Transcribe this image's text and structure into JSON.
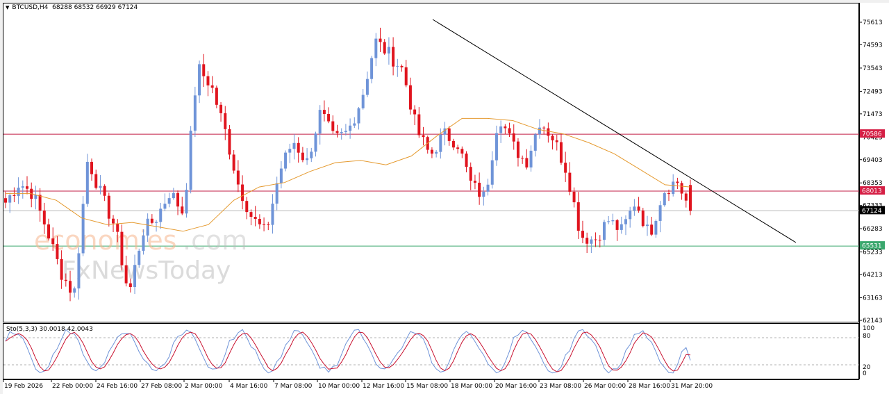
{
  "header": {
    "symbol_timeframe": "BTCUSD,H4",
    "ohlc": "68288 68532 66929 67124",
    "dropdown_icon": "triangle-down-icon"
  },
  "price_axis": {
    "ticks": [
      "75613",
      "74593",
      "73543",
      "72493",
      "71473",
      "70423",
      "69403",
      "68353",
      "67333",
      "66283",
      "65233",
      "64213",
      "63163",
      "62143"
    ],
    "tags": {
      "resistance_upper": "70586",
      "resistance_lower": "68013",
      "current_price": "67124",
      "support": "65531"
    }
  },
  "time_axis": {
    "labels": [
      "19 Feb 2026",
      "22 Feb 00:00",
      "24 Feb 16:00",
      "27 Feb 08:00",
      "2 Mar 00:00",
      "4 Mar 16:00",
      "7 Mar 08:00",
      "10 Mar 00:00",
      "12 Mar 16:00",
      "15 Mar 08:00",
      "18 Mar 00:00",
      "20 Mar 16:00",
      "23 Mar 08:00",
      "26 Mar 00:00",
      "28 Mar 16:00",
      "31 Mar 20:00"
    ]
  },
  "stochastic": {
    "label": "Sto(5,3,3) 30.0018 42.0043",
    "levels": [
      "100",
      "80",
      "20",
      "0"
    ]
  },
  "watermark": {
    "line1_a": "economies",
    "line1_b": ".com",
    "line2": "FxNewsToday"
  },
  "colors": {
    "bull": "#6f94d8",
    "bear": "#e0141e",
    "ma": "#e59a2f",
    "resistance": "#c21e44",
    "support": "#3aa76d",
    "current": "#000000",
    "trendline": "#000000",
    "stoch_main": "#6f94d8",
    "stoch_signal": "#c8102e"
  },
  "chart_data": {
    "type": "candlestick",
    "title": "BTCUSD, H4",
    "ohlc_last": {
      "open": 68288,
      "high": 68532,
      "low": 66929,
      "close": 67124
    },
    "ylim": [
      62143,
      75613
    ],
    "y_ticks": [
      75613,
      74593,
      73543,
      72493,
      71473,
      70423,
      69403,
      68353,
      67333,
      66283,
      65233,
      64213,
      63163,
      62143
    ],
    "x_tick_labels": [
      "19 Feb 2026",
      "22 Feb 00:00",
      "24 Feb 16:00",
      "27 Feb 08:00",
      "2 Mar 00:00",
      "4 Mar 16:00",
      "7 Mar 08:00",
      "10 Mar 00:00",
      "12 Mar 16:00",
      "15 Mar 08:00",
      "18 Mar 00:00",
      "20 Mar 16:00",
      "23 Mar 08:00",
      "26 Mar 00:00",
      "28 Mar 16:00",
      "31 Mar 20:00"
    ],
    "horizontal_levels": [
      {
        "name": "resistance",
        "value": 70586,
        "color": "#c21e44"
      },
      {
        "name": "resistance",
        "value": 68013,
        "color": "#c21e44"
      },
      {
        "name": "current",
        "value": 67124,
        "color": "#000000"
      },
      {
        "name": "support",
        "value": 65531,
        "color": "#3aa76d"
      }
    ],
    "trendline": {
      "from": {
        "x_label": "15 Mar 08:00",
        "price": 75780
      },
      "to": {
        "x_label": "after 31 Mar 20:00",
        "price": 65550
      },
      "direction": "descending"
    },
    "approx_close_path": [
      {
        "t": "19 Feb 2026",
        "close": 67500
      },
      {
        "t": "20 Feb",
        "close": 68400
      },
      {
        "t": "21 Feb",
        "close": 67900
      },
      {
        "t": "22 Feb 00:00",
        "close": 66300
      },
      {
        "t": "23 Feb",
        "close": 64400
      },
      {
        "t": "23 Feb 16:00",
        "close": 63300
      },
      {
        "t": "24 Feb 16:00",
        "close": 69500
      },
      {
        "t": "25 Feb",
        "close": 67800
      },
      {
        "t": "26 Feb",
        "close": 66400
      },
      {
        "t": "27 Feb 08:00",
        "close": 63300
      },
      {
        "t": "28 Feb",
        "close": 66200
      },
      {
        "t": "1 Mar",
        "close": 66800
      },
      {
        "t": "2 Mar 00:00",
        "close": 68000
      },
      {
        "t": "3 Mar",
        "close": 67000
      },
      {
        "t": "4 Mar",
        "close": 73600
      },
      {
        "t": "4 Mar 16:00",
        "close": 72800
      },
      {
        "t": "5 Mar",
        "close": 70800
      },
      {
        "t": "6 Mar",
        "close": 68300
      },
      {
        "t": "7 Mar 08:00",
        "close": 66800
      },
      {
        "t": "8 Mar",
        "close": 66100
      },
      {
        "t": "9 Mar",
        "close": 68900
      },
      {
        "t": "10 Mar 00:00",
        "close": 70300
      },
      {
        "t": "11 Mar",
        "close": 69300
      },
      {
        "t": "12 Mar",
        "close": 71600
      },
      {
        "t": "12 Mar 16:00",
        "close": 70300
      },
      {
        "t": "13 Mar",
        "close": 70700
      },
      {
        "t": "14 Mar",
        "close": 72200
      },
      {
        "t": "15 Mar 08:00",
        "close": 74800
      },
      {
        "t": "16 Mar",
        "close": 74200
      },
      {
        "t": "17 Mar",
        "close": 73500
      },
      {
        "t": "18 Mar 00:00",
        "close": 70800
      },
      {
        "t": "19 Mar",
        "close": 69600
      },
      {
        "t": "20 Mar",
        "close": 70600
      },
      {
        "t": "20 Mar 16:00",
        "close": 70200
      },
      {
        "t": "21 Mar",
        "close": 68300
      },
      {
        "t": "22 Mar",
        "close": 67700
      },
      {
        "t": "23 Mar",
        "close": 71500
      },
      {
        "t": "23 Mar 08:00",
        "close": 70100
      },
      {
        "t": "24 Mar",
        "close": 69300
      },
      {
        "t": "25 Mar",
        "close": 71200
      },
      {
        "t": "25 Mar 12:00",
        "close": 70400
      },
      {
        "t": "26 Mar 00:00",
        "close": 68900
      },
      {
        "t": "26 Mar 12:00",
        "close": 66000
      },
      {
        "t": "27 Mar",
        "close": 65800
      },
      {
        "t": "28 Mar",
        "close": 66700
      },
      {
        "t": "28 Mar 16:00",
        "close": 66200
      },
      {
        "t": "29 Mar",
        "close": 67600
      },
      {
        "t": "30 Mar",
        "close": 66000
      },
      {
        "t": "30 Mar 12:00",
        "close": 68000
      },
      {
        "t": "31 Mar",
        "close": 68500
      },
      {
        "t": "31 Mar 20:00",
        "close": 67124
      }
    ],
    "moving_average": {
      "color": "#e59a2f",
      "approx_path": [
        67900,
        67900,
        67600,
        66800,
        66500,
        66600,
        66400,
        66200,
        66500,
        67600,
        68200,
        68400,
        68900,
        69300,
        69400,
        69200,
        69600,
        70500,
        71300,
        71300,
        71200,
        70800,
        70600,
        70200,
        69700,
        69000,
        68300,
        68200
      ]
    },
    "indicator": {
      "name": "Stochastic Oscillator",
      "params": "(5,3,3)",
      "main": 30.0018,
      "signal": 42.0043,
      "levels": [
        80,
        20
      ],
      "ylim": [
        0,
        100
      ]
    },
    "watermark": "economies.com / FxNewsToday"
  }
}
